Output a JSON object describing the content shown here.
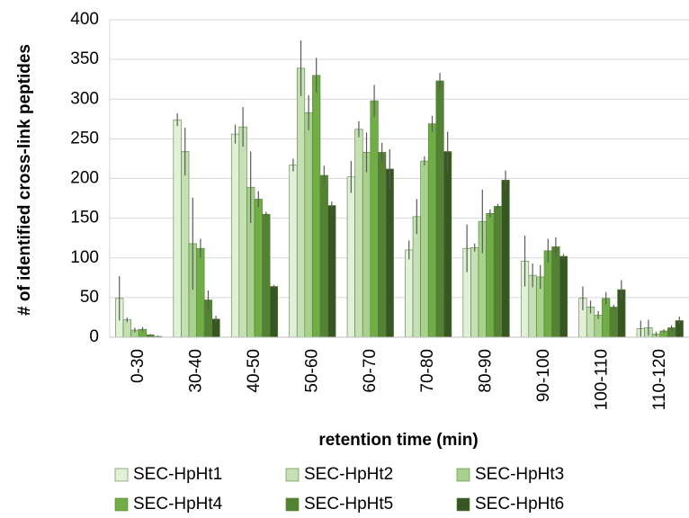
{
  "chart_data": {
    "type": "bar",
    "x_label": "retention time (min)",
    "y_label": "# of identified cross-link peptides",
    "categories": [
      "0-30",
      "30-40",
      "40-50",
      "50-60",
      "60-70",
      "70-80",
      "80-90",
      "90-100",
      "100-110",
      "110-120"
    ],
    "ylim": [
      0,
      400
    ],
    "yticks": [
      0,
      50,
      100,
      150,
      200,
      250,
      300,
      350,
      400
    ],
    "grid": true,
    "series": [
      {
        "name": "SEC-HpHt1",
        "color": "#e2f0d9",
        "values": [
          49,
          274,
          256,
          217,
          202,
          110,
          112,
          96,
          49,
          11
        ],
        "errors": [
          28,
          8,
          12,
          8,
          20,
          12,
          30,
          32,
          15,
          10
        ]
      },
      {
        "name": "SEC-HpHt2",
        "color": "#c5e0b4",
        "values": [
          22,
          234,
          265,
          339,
          262,
          152,
          113,
          78,
          38,
          12
        ],
        "errors": [
          3,
          30,
          25,
          35,
          10,
          22,
          5,
          15,
          8,
          10
        ]
      },
      {
        "name": "SEC-HpHt3",
        "color": "#a9d18e",
        "values": [
          9,
          118,
          189,
          283,
          233,
          222,
          146,
          76,
          28,
          4
        ],
        "errors": [
          3,
          58,
          45,
          22,
          25,
          6,
          40,
          15,
          5,
          3
        ]
      },
      {
        "name": "SEC-HpHt4",
        "color": "#70ad47",
        "values": [
          10,
          112,
          174,
          330,
          298,
          269,
          156,
          109,
          49,
          8
        ],
        "errors": [
          3,
          12,
          10,
          22,
          20,
          10,
          5,
          15,
          8,
          2
        ]
      },
      {
        "name": "SEC-HpHt5",
        "color": "#548235",
        "values": [
          3,
          47,
          155,
          204,
          233,
          323,
          165,
          114,
          38,
          12
        ],
        "errors": [
          1,
          12,
          3,
          12,
          12,
          10,
          3,
          12,
          3,
          3
        ]
      },
      {
        "name": "SEC-HpHt6",
        "color": "#375623",
        "values": [
          1,
          23,
          64,
          166,
          212,
          234,
          198,
          102,
          60,
          21
        ],
        "errors": [
          1,
          4,
          2,
          5,
          25,
          25,
          12,
          3,
          12,
          5
        ]
      }
    ]
  }
}
